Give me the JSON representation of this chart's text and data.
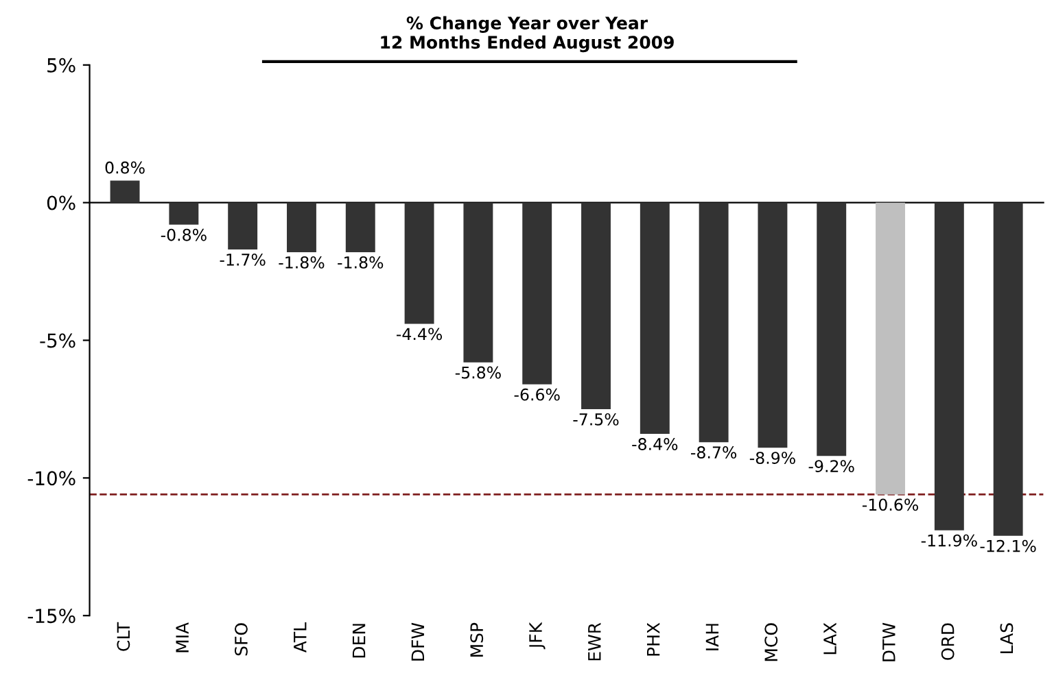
{
  "chart_data": {
    "type": "bar",
    "title": "% Change Year over Year\n12 Months Ended August 2009",
    "categories": [
      "CLT",
      "MIA",
      "SFO",
      "ATL",
      "DEN",
      "DFW",
      "MSP",
      "JFK",
      "EWR",
      "PHX",
      "IAH",
      "MCO",
      "LAX",
      "DTW",
      "ORD",
      "LAS"
    ],
    "values": [
      0.8,
      -0.8,
      -1.7,
      -1.8,
      -1.8,
      -4.4,
      -5.8,
      -6.6,
      -7.5,
      -8.4,
      -8.7,
      -8.9,
      -9.2,
      -10.6,
      -11.9,
      -12.1
    ],
    "colors": [
      "#333333",
      "#333333",
      "#333333",
      "#333333",
      "#333333",
      "#333333",
      "#333333",
      "#333333",
      "#333333",
      "#333333",
      "#333333",
      "#333333",
      "#333333",
      "#bfbfbf",
      "#333333",
      "#333333"
    ],
    "value_labels": [
      "0.8%",
      "-0.8%",
      "-1.7%",
      "-1.8%",
      "-1.8%",
      "-4.4%",
      "-5.8%",
      "-6.6%",
      "-7.5%",
      "-8.4%",
      "-8.7%",
      "-8.9%",
      "-9.2%",
      "-10.6%",
      "-11.9%",
      "-12.1%"
    ],
    "ylim": [
      -15,
      5
    ],
    "yticks": [
      {
        "value": -15,
        "label": "-15%"
      },
      {
        "value": -10,
        "label": "-10%"
      },
      {
        "value": -5,
        "label": "-5%"
      },
      {
        "value": 0,
        "label": "0%"
      },
      {
        "value": 5,
        "label": "5%"
      }
    ],
    "ref_lines": [
      {
        "axis": "y",
        "value": -10.6,
        "label": null,
        "color": "#7f1f1f",
        "line_style": "dashed"
      }
    ],
    "legend": false
  }
}
